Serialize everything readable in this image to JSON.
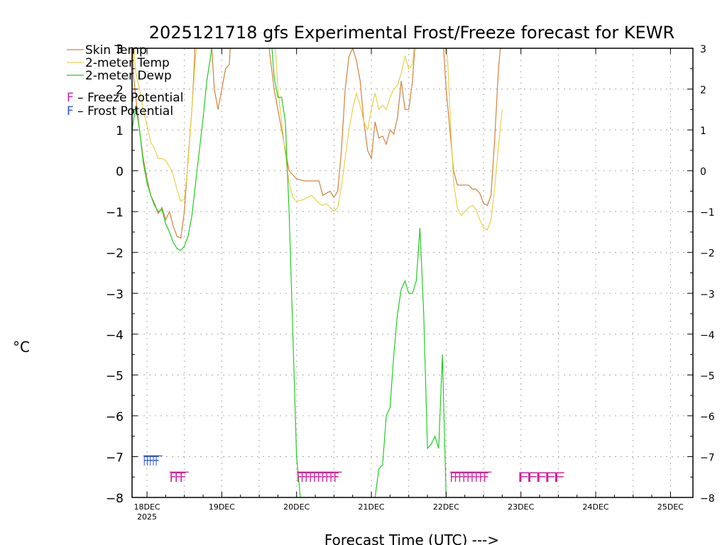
{
  "colors": {
    "skin": "#d4803a",
    "temp": "#e6d24a",
    "dewp": "#22cc22",
    "freeze": "#cc2299",
    "frost": "#3355cc",
    "grid": "#aaaaaa"
  },
  "chart_data": {
    "type": "line",
    "title": "2025121718 gfs Experimental Frost/Freeze forecast for KEWR",
    "ylabel": "°C",
    "xlabel": "Forecast Time (UTC) --->",
    "ylim": [
      -8,
      3
    ],
    "xlim": [
      17.8,
      25.3
    ],
    "yticks": [
      3,
      2,
      1,
      0,
      -1,
      -2,
      -3,
      -4,
      -5,
      -6,
      -7,
      -8
    ],
    "ytick_labels": [
      "3",
      "2",
      "1",
      "0",
      "−1",
      "−2",
      "−3",
      "−4",
      "−5",
      "−6",
      "−7",
      "−8"
    ],
    "xticks": [
      {
        "x": 18,
        "label": "18DEC",
        "sub": "2025"
      },
      {
        "x": 19,
        "label": "19DEC",
        "sub": ""
      },
      {
        "x": 20,
        "label": "20DEC",
        "sub": ""
      },
      {
        "x": 21,
        "label": "21DEC",
        "sub": ""
      },
      {
        "x": 22,
        "label": "22DEC",
        "sub": ""
      },
      {
        "x": 23,
        "label": "23DEC",
        "sub": ""
      },
      {
        "x": 24,
        "label": "24DEC",
        "sub": ""
      },
      {
        "x": 25,
        "label": "25DEC",
        "sub": ""
      }
    ],
    "series": [
      {
        "name": "Skin Temp",
        "key": "skin",
        "points": [
          [
            17.8,
            3.5
          ],
          [
            17.82,
            2.3
          ],
          [
            17.85,
            1.8
          ],
          [
            17.9,
            1.0
          ],
          [
            17.95,
            0.3
          ],
          [
            18.0,
            -0.2
          ],
          [
            18.05,
            -0.6
          ],
          [
            18.1,
            -0.8
          ],
          [
            18.15,
            -1.05
          ],
          [
            18.2,
            -0.9
          ],
          [
            18.25,
            -1.2
          ],
          [
            18.3,
            -1.0
          ],
          [
            18.35,
            -1.35
          ],
          [
            18.4,
            -1.6
          ],
          [
            18.45,
            -1.65
          ],
          [
            18.5,
            -1.0
          ],
          [
            18.55,
            0.3
          ],
          [
            18.6,
            1.5
          ],
          [
            18.63,
            2.5
          ],
          [
            18.65,
            3.5
          ]
        ],
        "points2": [
          [
            18.85,
            3.5
          ],
          [
            18.9,
            2.0
          ],
          [
            18.95,
            1.5
          ],
          [
            19.0,
            2.0
          ],
          [
            19.05,
            2.5
          ],
          [
            19.1,
            2.6
          ],
          [
            19.13,
            3.5
          ]
        ],
        "points3": [
          [
            19.6,
            3.5
          ],
          [
            19.7,
            2.0
          ],
          [
            19.8,
            1.0
          ],
          [
            19.9,
            0.0
          ],
          [
            20.0,
            -0.2
          ],
          [
            20.1,
            -0.25
          ],
          [
            20.2,
            -0.25
          ],
          [
            20.3,
            -0.25
          ],
          [
            20.35,
            -0.6
          ],
          [
            20.4,
            -0.55
          ],
          [
            20.45,
            -0.5
          ],
          [
            20.5,
            -0.65
          ],
          [
            20.55,
            -0.5
          ],
          [
            20.6,
            0.5
          ],
          [
            20.65,
            2.0
          ],
          [
            20.7,
            2.8
          ],
          [
            20.75,
            3.0
          ],
          [
            20.8,
            2.7
          ],
          [
            20.85,
            2.2
          ],
          [
            20.9,
            1.2
          ],
          [
            20.95,
            0.5
          ],
          [
            21.0,
            0.3
          ],
          [
            21.05,
            1.2
          ],
          [
            21.1,
            0.8
          ],
          [
            21.15,
            0.85
          ],
          [
            21.2,
            0.65
          ],
          [
            21.25,
            1.0
          ],
          [
            21.3,
            0.9
          ],
          [
            21.35,
            1.3
          ],
          [
            21.4,
            2.2
          ],
          [
            21.45,
            1.5
          ],
          [
            21.5,
            1.5
          ],
          [
            21.55,
            2.2
          ],
          [
            21.6,
            3.5
          ]
        ],
        "points4": [
          [
            21.95,
            3.5
          ],
          [
            22.0,
            2.0
          ],
          [
            22.05,
            1.0
          ],
          [
            22.1,
            0.0
          ],
          [
            22.15,
            -0.35
          ],
          [
            22.2,
            -0.35
          ],
          [
            22.3,
            -0.35
          ],
          [
            22.35,
            -0.45
          ],
          [
            22.4,
            -0.45
          ],
          [
            22.45,
            -0.55
          ],
          [
            22.5,
            -0.8
          ],
          [
            22.55,
            -0.85
          ],
          [
            22.6,
            -0.6
          ],
          [
            22.65,
            0.8
          ],
          [
            22.7,
            2.5
          ],
          [
            22.75,
            3.5
          ]
        ]
      },
      {
        "name": "2-meter Temp",
        "key": "temp",
        "points": [
          [
            17.8,
            3.5
          ],
          [
            17.85,
            2.4
          ],
          [
            17.9,
            2.0
          ],
          [
            17.95,
            1.5
          ],
          [
            18.0,
            1.1
          ],
          [
            18.05,
            0.7
          ],
          [
            18.1,
            0.55
          ],
          [
            18.15,
            0.3
          ],
          [
            18.2,
            0.3
          ],
          [
            18.25,
            0.25
          ],
          [
            18.3,
            0.1
          ],
          [
            18.35,
            -0.1
          ],
          [
            18.4,
            -0.45
          ],
          [
            18.45,
            -0.75
          ],
          [
            18.5,
            -0.7
          ],
          [
            18.55,
            0.2
          ],
          [
            18.6,
            1.5
          ],
          [
            18.65,
            2.8
          ],
          [
            18.7,
            3.5
          ]
        ],
        "points2": [
          [
            19.7,
            3.5
          ],
          [
            19.75,
            2.0
          ],
          [
            19.8,
            1.2
          ],
          [
            19.85,
            0.4
          ],
          [
            19.9,
            -0.3
          ],
          [
            19.95,
            -0.65
          ],
          [
            20.0,
            -0.75
          ],
          [
            20.1,
            -0.7
          ],
          [
            20.2,
            -0.6
          ],
          [
            20.3,
            -0.8
          ],
          [
            20.35,
            -0.85
          ],
          [
            20.4,
            -0.8
          ],
          [
            20.45,
            -0.9
          ],
          [
            20.5,
            -1.0
          ],
          [
            20.55,
            -0.9
          ],
          [
            20.6,
            -0.4
          ],
          [
            20.65,
            0.3
          ],
          [
            20.7,
            1.0
          ],
          [
            20.75,
            1.5
          ],
          [
            20.8,
            1.9
          ],
          [
            20.85,
            1.6
          ],
          [
            20.9,
            1.2
          ],
          [
            20.95,
            1.0
          ],
          [
            21.0,
            1.5
          ],
          [
            21.05,
            1.9
          ],
          [
            21.1,
            1.5
          ],
          [
            21.15,
            1.6
          ],
          [
            21.2,
            1.5
          ],
          [
            21.25,
            1.8
          ],
          [
            21.3,
            2.0
          ],
          [
            21.35,
            2.1
          ],
          [
            21.4,
            2.4
          ],
          [
            21.45,
            2.8
          ],
          [
            21.5,
            2.5
          ],
          [
            21.55,
            2.6
          ],
          [
            21.6,
            3.5
          ]
        ],
        "points3": [
          [
            22.0,
            3.5
          ],
          [
            22.05,
            1.5
          ],
          [
            22.1,
            -0.3
          ],
          [
            22.15,
            -0.9
          ],
          [
            22.2,
            -1.1
          ],
          [
            22.25,
            -1.0
          ],
          [
            22.3,
            -0.9
          ],
          [
            22.35,
            -0.85
          ],
          [
            22.4,
            -0.95
          ],
          [
            22.45,
            -1.2
          ],
          [
            22.5,
            -1.4
          ],
          [
            22.55,
            -1.45
          ],
          [
            22.6,
            -1.2
          ],
          [
            22.65,
            -0.4
          ],
          [
            22.7,
            0.6
          ],
          [
            22.75,
            1.5
          ]
        ]
      },
      {
        "name": "2-meter Dewp",
        "key": "dewp",
        "points": [
          [
            17.8,
            1.0
          ],
          [
            17.85,
            1.6
          ],
          [
            17.9,
            1.0
          ],
          [
            17.95,
            0.2
          ],
          [
            18.0,
            -0.3
          ],
          [
            18.05,
            -0.6
          ],
          [
            18.1,
            -0.85
          ],
          [
            18.15,
            -1.0
          ],
          [
            18.2,
            -0.95
          ],
          [
            18.25,
            -1.3
          ],
          [
            18.3,
            -1.5
          ],
          [
            18.35,
            -1.75
          ],
          [
            18.4,
            -1.9
          ],
          [
            18.45,
            -1.95
          ],
          [
            18.5,
            -1.85
          ],
          [
            18.55,
            -1.6
          ],
          [
            18.6,
            -1.1
          ],
          [
            18.65,
            -0.3
          ],
          [
            18.7,
            0.5
          ],
          [
            18.75,
            1.3
          ],
          [
            18.8,
            2.2
          ],
          [
            18.85,
            2.8
          ],
          [
            18.9,
            3.5
          ]
        ],
        "points2": [
          [
            19.65,
            3.5
          ],
          [
            19.7,
            2.3
          ],
          [
            19.75,
            1.8
          ],
          [
            19.8,
            1.8
          ],
          [
            19.85,
            1.2
          ],
          [
            19.9,
            -1.0
          ],
          [
            19.95,
            -4.0
          ],
          [
            20.0,
            -7.0
          ],
          [
            20.05,
            -8.0
          ]
        ],
        "points3": [
          [
            21.05,
            -8.0
          ],
          [
            21.1,
            -7.3
          ],
          [
            21.15,
            -7.2
          ],
          [
            21.2,
            -6.0
          ],
          [
            21.25,
            -5.8
          ],
          [
            21.3,
            -4.5
          ],
          [
            21.35,
            -3.5
          ],
          [
            21.4,
            -2.9
          ],
          [
            21.45,
            -2.7
          ],
          [
            21.5,
            -3.0
          ],
          [
            21.55,
            -3.0
          ],
          [
            21.6,
            -2.7
          ],
          [
            21.65,
            -1.4
          ],
          [
            21.7,
            -3.5
          ],
          [
            21.75,
            -6.8
          ],
          [
            21.8,
            -6.7
          ],
          [
            21.85,
            -6.5
          ],
          [
            21.9,
            -6.8
          ],
          [
            21.95,
            -4.5
          ],
          [
            22.0,
            -8.0
          ]
        ]
      }
    ],
    "legend": [
      {
        "label": "Skin Temp",
        "key": "skin"
      },
      {
        "label": "2-meter Temp",
        "key": "temp"
      },
      {
        "label": "2-meter Dewp",
        "key": "dewp"
      }
    ],
    "potential_legend": [
      {
        "glyph": "F",
        "label": " – Freeze Potential",
        "key": "freeze"
      },
      {
        "glyph": "F",
        "label": " – Frost Potential",
        "key": "frost"
      }
    ],
    "markers": [
      {
        "type": "frost",
        "y": -7.1,
        "x_start": 17.95,
        "x_end": 18.15,
        "text": "FFFFF",
        "dense": true
      },
      {
        "type": "freeze",
        "y": -7.5,
        "x_start": 18.3,
        "x_end": 18.5,
        "text": "FFF",
        "dense": true
      },
      {
        "type": "freeze",
        "y": -7.5,
        "x_start": 20.0,
        "x_end": 20.55,
        "text": "FFFFFFFFFF",
        "dense": true
      },
      {
        "type": "freeze",
        "y": -7.5,
        "x_start": 22.05,
        "x_end": 22.55,
        "text": "FFFFFFFFF",
        "dense": true
      },
      {
        "type": "freeze",
        "y": -7.5,
        "x_start": 22.95,
        "x_end": 23.55,
        "text": "FFFFF",
        "dense": false
      }
    ]
  }
}
